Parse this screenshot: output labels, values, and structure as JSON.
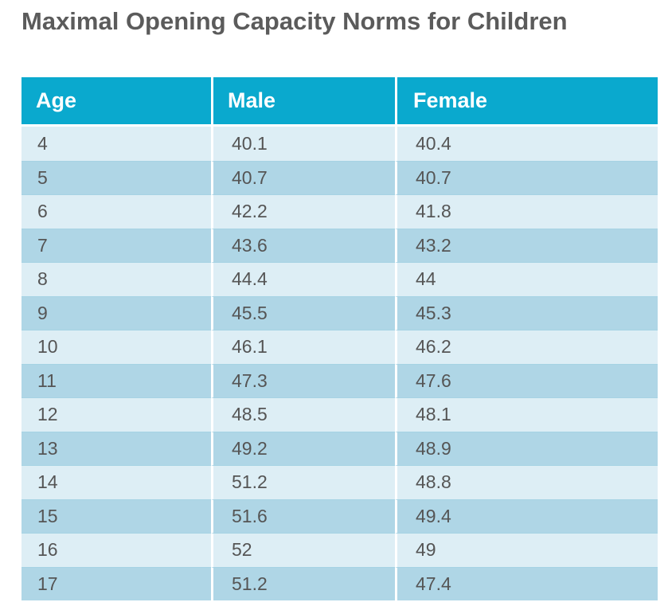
{
  "chart_data": {
    "type": "table",
    "title": "Maximal Opening Capacity Norms for Children",
    "columns": [
      "Age",
      "Male",
      "Female"
    ],
    "rows": [
      [
        "4",
        "40.1",
        "40.4"
      ],
      [
        "5",
        "40.7",
        "40.7"
      ],
      [
        "6",
        "42.2",
        "41.8"
      ],
      [
        "7",
        "43.6",
        "43.2"
      ],
      [
        "8",
        "44.4",
        "44"
      ],
      [
        "9",
        "45.5",
        "45.3"
      ],
      [
        "10",
        "46.1",
        "46.2"
      ],
      [
        "11",
        "47.3",
        "47.6"
      ],
      [
        "12",
        "48.5",
        "48.1"
      ],
      [
        "13",
        "49.2",
        "48.9"
      ],
      [
        "14",
        "51.2",
        "48.8"
      ],
      [
        "15",
        "51.6",
        "49.4"
      ],
      [
        "16",
        "52",
        "49"
      ],
      [
        "17",
        "51.2",
        "47.4"
      ]
    ]
  },
  "colors": {
    "header": "#0aa9ce",
    "row_light": "#ddeef5",
    "row_dark": "#afd6e6",
    "title_text": "#5b5b5b"
  }
}
